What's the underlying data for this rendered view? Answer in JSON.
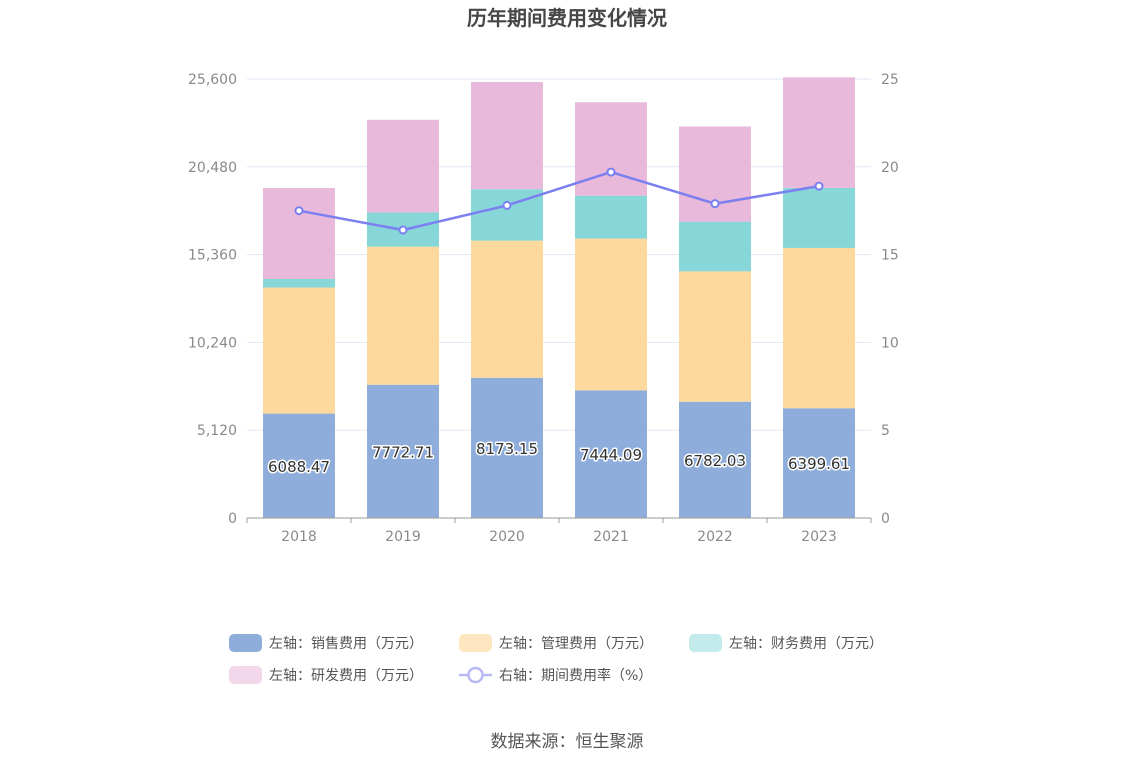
{
  "chart_data": {
    "type": "bar",
    "title": "历年期间费用变化情况",
    "categories": [
      "2018",
      "2019",
      "2020",
      "2021",
      "2022",
      "2023"
    ],
    "series": [
      {
        "name": "左轴：销售费用（万元）",
        "axis": "left",
        "type": "bar",
        "color": "#8eaddb",
        "values": [
          6088.47,
          7772.71,
          8173.15,
          7444.09,
          6782.03,
          6399.61
        ],
        "show_labels": true
      },
      {
        "name": "左轴：管理费用（万元）",
        "axis": "left",
        "type": "bar",
        "color": "#fed99d",
        "values": [
          7350,
          8050,
          8000,
          8850,
          7600,
          9350
        ],
        "show_labels": false
      },
      {
        "name": "左轴：财务费用（万元）",
        "axis": "left",
        "type": "bar",
        "color": "#87d6d8",
        "values": [
          500,
          2000,
          3000,
          2500,
          2900,
          3500
        ],
        "show_labels": false
      },
      {
        "name": "左轴：研发费用（万元）",
        "axis": "left",
        "type": "bar",
        "color": "#e8b9da",
        "values": [
          5300,
          5400,
          6250,
          5450,
          5550,
          6450
        ],
        "show_labels": false
      },
      {
        "name": "右轴：期间费用率（%）",
        "axis": "right",
        "type": "line",
        "color": "#7b7ff0",
        "values": [
          17.5,
          16.4,
          17.8,
          19.7,
          17.9,
          18.9
        ],
        "show_labels": false
      }
    ],
    "y_left": {
      "ylim": [
        0,
        25600
      ],
      "ticks": [
        0,
        5120,
        10240,
        15360,
        20480,
        25600
      ],
      "tick_labels": [
        "0",
        "5,120",
        "10,240",
        "15,360",
        "20,480",
        "25,600"
      ]
    },
    "y_right": {
      "ylim": [
        0,
        25
      ],
      "ticks": [
        0,
        5,
        10,
        15,
        20,
        25
      ],
      "tick_labels": [
        "0",
        "5",
        "10",
        "15",
        "20",
        "25"
      ]
    },
    "grid": true,
    "legend_position": "bottom",
    "source": "数据来源：恒生聚源"
  }
}
